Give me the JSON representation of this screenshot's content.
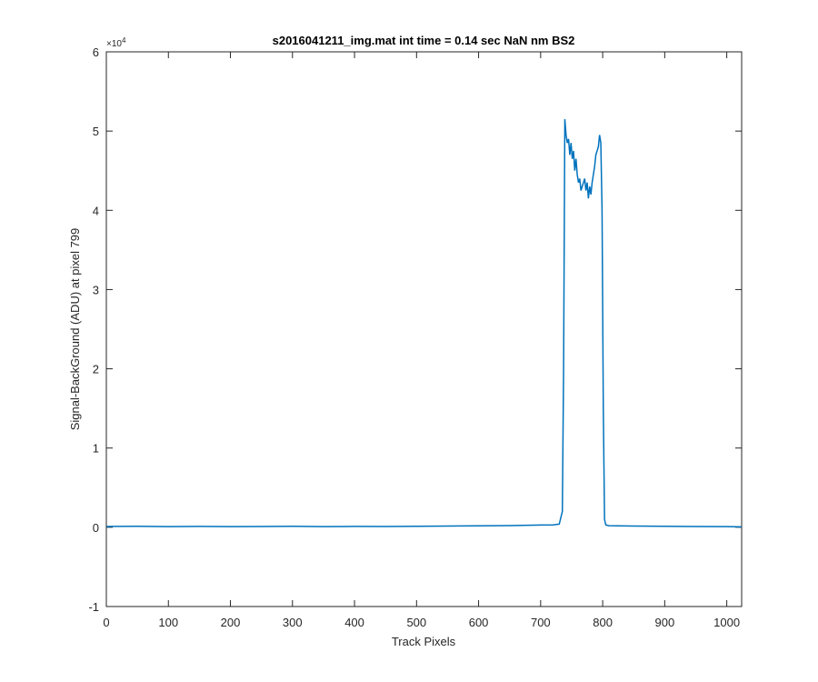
{
  "figure": {
    "background": "#ffffff"
  },
  "chart_data": {
    "type": "line",
    "title": "s2016041211_img.mat int time = 0.14 sec  NaN nm BS2",
    "xlabel": "Track Pixels",
    "ylabel": "Signal-BackGround (ADU) at pixel 799",
    "xlim": [
      0,
      1024
    ],
    "ylim": [
      -10000,
      60000
    ],
    "y_exponent_label": "×10",
    "y_exponent_power": "4",
    "x_ticks": [
      0,
      100,
      200,
      300,
      400,
      500,
      600,
      700,
      800,
      900,
      1000
    ],
    "x_tick_labels": [
      "0",
      "100",
      "200",
      "300",
      "400",
      "500",
      "600",
      "700",
      "800",
      "900",
      "1000"
    ],
    "y_ticks": [
      -10000,
      0,
      10000,
      20000,
      30000,
      40000,
      50000,
      60000
    ],
    "y_tick_labels": [
      "-1",
      "0",
      "1",
      "2",
      "3",
      "4",
      "5",
      "6"
    ],
    "grid": false,
    "box": true,
    "line_color": "#0072bd",
    "axis_color": "#262626",
    "series": [
      {
        "x": [
          0,
          50,
          100,
          150,
          200,
          250,
          300,
          350,
          400,
          450,
          500,
          550,
          600,
          650,
          700,
          720,
          730,
          735,
          737,
          739,
          741,
          743,
          745,
          747,
          749,
          751,
          753,
          755,
          757,
          759,
          761,
          763,
          765,
          767,
          769,
          771,
          773,
          775,
          777,
          779,
          781,
          783,
          785,
          787,
          789,
          791,
          793,
          795,
          797,
          799,
          801,
          803,
          805,
          810,
          850,
          900,
          950,
          1000,
          1024
        ],
        "y": [
          100,
          120,
          90,
          110,
          80,
          100,
          120,
          90,
          110,
          100,
          130,
          150,
          180,
          220,
          280,
          300,
          400,
          2000,
          20000,
          51500,
          49500,
          48500,
          49000,
          47000,
          48500,
          46500,
          47500,
          45000,
          46500,
          44500,
          43500,
          44000,
          42500,
          43000,
          43500,
          44000,
          42500,
          43500,
          41500,
          43000,
          42000,
          43500,
          44500,
          45500,
          47000,
          47500,
          48000,
          49500,
          48500,
          40000,
          15000,
          1000,
          300,
          200,
          150,
          120,
          100,
          80,
          60
        ]
      }
    ]
  }
}
